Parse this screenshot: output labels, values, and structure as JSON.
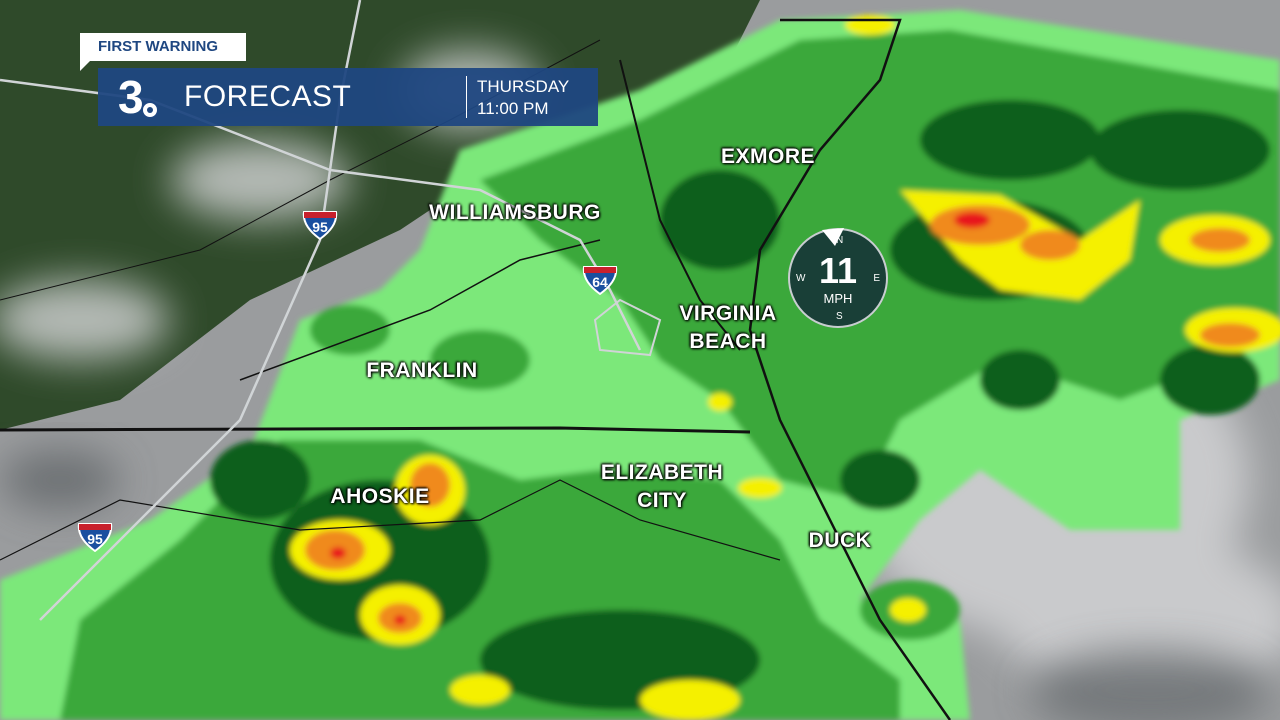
{
  "header": {
    "tag": "FIRST WARNING",
    "station_number": "3",
    "title": "FORECAST",
    "day": "THURSDAY",
    "time": "11:00 PM",
    "brand_color": "#1f4781"
  },
  "wind": {
    "speed": "11",
    "unit": "MPH",
    "direction_from": "N",
    "labels": {
      "n": "N",
      "e": "E",
      "s": "S",
      "w": "W"
    }
  },
  "cities": [
    {
      "name": "WILLIAMSBURG"
    },
    {
      "name": "EXMORE"
    },
    {
      "name": "VIRGINIA\nBEACH"
    },
    {
      "name": "FRANKLIN"
    },
    {
      "name": "AHOSKIE"
    },
    {
      "name": "ELIZABETH\nCITY"
    },
    {
      "name": "DUCK"
    }
  ],
  "interstates": [
    {
      "number": "95"
    },
    {
      "number": "64"
    },
    {
      "number": "95"
    }
  ],
  "radar_colors": {
    "light": "#7ce87a",
    "moderate": "#3aa83a",
    "heavy": "#0f5e1c",
    "very_heavy": "#f5f000",
    "intense": "#f08a1c",
    "extreme": "#e8141c"
  }
}
